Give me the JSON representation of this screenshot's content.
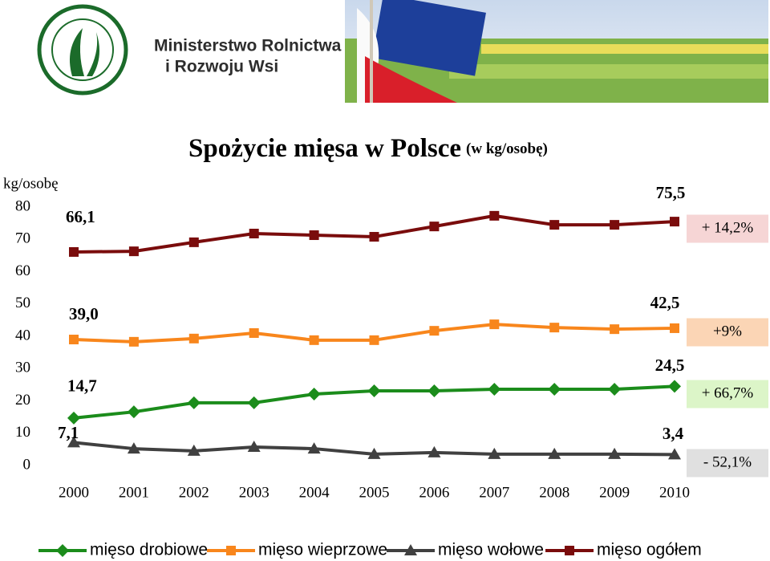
{
  "header": {
    "line1": "Ministerstwo Rolnictwa",
    "line2": "i Rozwoju Wsi"
  },
  "chart_data": {
    "type": "line",
    "title": "Spożycie mięsa w Polsce",
    "subtitle": "(w kg/osobę)",
    "y_label": "kg/osobę",
    "categories": [
      "2000",
      "2001",
      "2002",
      "2003",
      "2004",
      "2005",
      "2006",
      "2007",
      "2008",
      "2009",
      "2010"
    ],
    "ylim": [
      0,
      80
    ],
    "yticks": [
      0,
      10,
      20,
      30,
      40,
      50,
      60,
      70,
      80
    ],
    "grid": false,
    "legend": "bottom",
    "series": [
      {
        "name": "mięso drobiowe",
        "color": "#1b8c1b",
        "marker": "diamond",
        "values": [
          14.7,
          16.6,
          19.4,
          19.4,
          22.1,
          23.1,
          23.1,
          23.6,
          23.6,
          23.6,
          24.5
        ],
        "value_labels": [
          "14,7",
          null,
          null,
          null,
          null,
          null,
          null,
          null,
          null,
          null,
          "24,5"
        ],
        "change": "+ 66,7%",
        "change_background": "#dcf5c8"
      },
      {
        "name": "mięso wieprzowe",
        "color": "#f8861c",
        "marker": "square",
        "values": [
          39.0,
          38.3,
          39.3,
          41.0,
          38.8,
          38.8,
          41.7,
          43.7,
          42.7,
          42.2,
          42.5
        ],
        "value_labels": [
          "39,0",
          null,
          null,
          null,
          null,
          null,
          null,
          null,
          null,
          null,
          "42,5"
        ],
        "change": "+9%",
        "change_background": "#fbd5b5"
      },
      {
        "name": "mięso wołowe",
        "color": "#404040",
        "marker": "triangle",
        "values": [
          7.1,
          5.2,
          4.5,
          5.7,
          5.2,
          3.5,
          4.0,
          3.5,
          3.5,
          3.5,
          3.4
        ],
        "value_labels": [
          "7,1",
          null,
          null,
          null,
          null,
          null,
          null,
          null,
          null,
          null,
          "3,4"
        ],
        "change": "- 52,1%",
        "change_background": "#e0e0e0"
      },
      {
        "name": "mięso ogółem",
        "color": "#7a0c0c",
        "marker": "square",
        "values": [
          66.1,
          66.3,
          69.1,
          71.8,
          71.3,
          70.8,
          74.0,
          77.3,
          74.5,
          74.5,
          75.5
        ],
        "value_labels": [
          "66,1",
          null,
          null,
          null,
          null,
          null,
          null,
          null,
          null,
          null,
          "75,5"
        ],
        "change": "+ 14,2%",
        "change_background": "#f6d5d5"
      }
    ]
  }
}
